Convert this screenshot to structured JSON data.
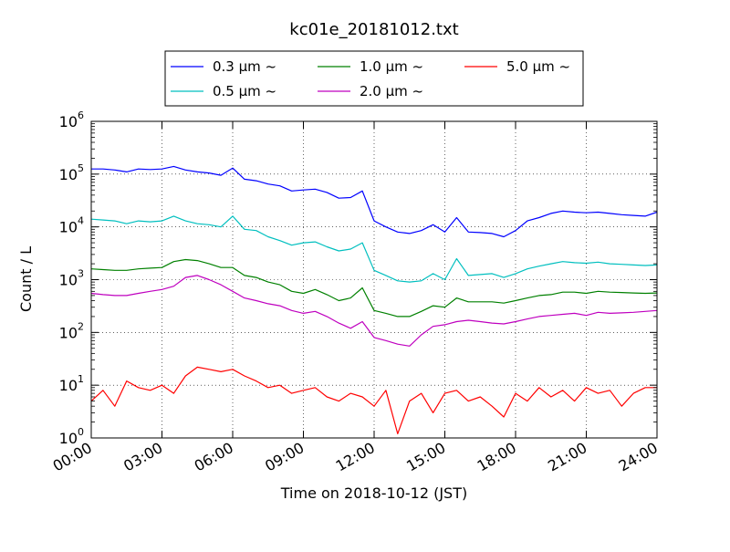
{
  "chart_data": {
    "type": "line",
    "title": "kc01e_20181012.txt",
    "xlabel": "Time on 2018-10-12 (JST)",
    "ylabel": "Count / L",
    "yscale": "log",
    "ylim": [
      1,
      1000000
    ],
    "xlim": [
      "00:00",
      "24:00"
    ],
    "grid": true,
    "legend_placement": "top-center",
    "x_tick_labels": [
      "00:00",
      "03:00",
      "06:00",
      "09:00",
      "12:00",
      "15:00",
      "18:00",
      "21:00",
      "24:00"
    ],
    "y_ticks": [
      {
        "base": "10",
        "exp": "0",
        "value": 1
      },
      {
        "base": "10",
        "exp": "1",
        "value": 10
      },
      {
        "base": "10",
        "exp": "2",
        "value": 100
      },
      {
        "base": "10",
        "exp": "3",
        "value": 1000
      },
      {
        "base": "10",
        "exp": "4",
        "value": 10000
      },
      {
        "base": "10",
        "exp": "5",
        "value": 100000
      },
      {
        "base": "10",
        "exp": "6",
        "value": 1000000
      }
    ],
    "x": [
      "00:00",
      "00:30",
      "01:00",
      "01:30",
      "02:00",
      "02:30",
      "03:00",
      "03:30",
      "04:00",
      "04:30",
      "05:00",
      "05:30",
      "06:00",
      "06:30",
      "07:00",
      "07:30",
      "08:00",
      "08:30",
      "09:00",
      "09:30",
      "10:00",
      "10:30",
      "11:00",
      "11:30",
      "12:00",
      "12:30",
      "13:00",
      "13:30",
      "14:00",
      "14:30",
      "15:00",
      "15:30",
      "16:00",
      "16:30",
      "17:00",
      "17:30",
      "18:00",
      "18:30",
      "19:00",
      "19:30",
      "20:00",
      "20:30",
      "21:00",
      "21:30",
      "22:00",
      "22:30",
      "23:00",
      "23:30",
      "24:00"
    ],
    "series": [
      {
        "name": "0.3 μm ~",
        "color": "#0000ff",
        "values": [
          125000,
          125000,
          120000,
          110000,
          125000,
          122000,
          125000,
          140000,
          120000,
          110000,
          105000,
          95000,
          130000,
          80000,
          75000,
          65000,
          60000,
          48000,
          50000,
          52000,
          45000,
          35000,
          36000,
          48000,
          13000,
          10000,
          8000,
          7500,
          8500,
          11000,
          8000,
          15000,
          8000,
          7800,
          7500,
          6500,
          8500,
          13000,
          15000,
          18000,
          20000,
          19000,
          18500,
          19000,
          18000,
          17000,
          16500,
          16000,
          19000
        ]
      },
      {
        "name": "0.5 μm ~",
        "color": "#00bfbf",
        "values": [
          14000,
          13500,
          13000,
          11500,
          13000,
          12500,
          13000,
          16000,
          13000,
          11500,
          11000,
          10000,
          16000,
          9000,
          8500,
          6500,
          5500,
          4500,
          5000,
          5200,
          4200,
          3500,
          3800,
          5000,
          1500,
          1200,
          950,
          900,
          950,
          1300,
          1000,
          2500,
          1200,
          1250,
          1300,
          1100,
          1300,
          1600,
          1800,
          2000,
          2200,
          2100,
          2050,
          2150,
          2000,
          1950,
          1900,
          1850,
          1900
        ]
      },
      {
        "name": "1.0 μm ~",
        "color": "#008000",
        "values": [
          1600,
          1550,
          1500,
          1500,
          1600,
          1650,
          1700,
          2200,
          2400,
          2300,
          2000,
          1700,
          1700,
          1200,
          1100,
          900,
          800,
          600,
          550,
          650,
          520,
          400,
          450,
          700,
          260,
          230,
          200,
          200,
          250,
          320,
          300,
          450,
          380,
          380,
          380,
          360,
          400,
          450,
          500,
          520,
          580,
          580,
          550,
          600,
          580,
          570,
          560,
          550,
          560
        ]
      },
      {
        "name": "2.0 μm ~",
        "color": "#bf00bf",
        "values": [
          550,
          520,
          500,
          500,
          550,
          600,
          650,
          750,
          1100,
          1200,
          1000,
          800,
          600,
          450,
          400,
          350,
          320,
          260,
          230,
          250,
          200,
          150,
          120,
          160,
          80,
          70,
          60,
          55,
          90,
          130,
          140,
          160,
          170,
          160,
          150,
          145,
          160,
          180,
          200,
          210,
          220,
          230,
          210,
          240,
          230,
          235,
          240,
          250,
          260
        ]
      },
      {
        "name": "5.0 μm ~",
        "color": "#ff0000",
        "values": [
          5,
          8,
          4,
          12,
          9,
          8,
          10,
          7,
          15,
          22,
          20,
          18,
          20,
          15,
          12,
          9,
          10,
          7,
          8,
          9,
          6,
          5,
          7,
          6,
          4,
          8,
          1.2,
          5,
          7,
          3,
          7,
          8,
          5,
          6,
          4,
          2.5,
          7,
          5,
          9,
          6,
          8,
          5,
          9,
          7,
          8,
          4,
          7,
          9,
          9
        ]
      }
    ]
  }
}
